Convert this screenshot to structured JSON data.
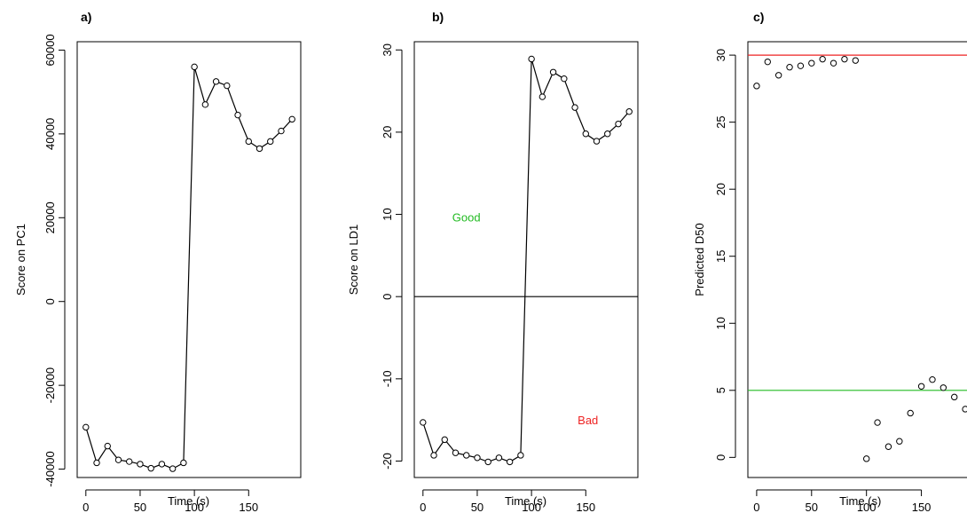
{
  "chart_data": [
    {
      "type": "line",
      "panel_label": "a)",
      "xlabel": "Time (s)",
      "ylabel": "Score on PC1",
      "xlim": [
        -8,
        198
      ],
      "ylim": [
        -42000,
        62000
      ],
      "x_ticks": [
        0,
        50,
        100,
        150
      ],
      "y_ticks": [
        -40000,
        -20000,
        0,
        20000,
        40000,
        60000
      ],
      "x_tick_labels": [
        "0",
        "50",
        "100",
        "150"
      ],
      "y_tick_labels": [
        "-40000",
        "-20000",
        "0",
        "20000",
        "40000",
        "60000"
      ],
      "markers": true,
      "series": [
        {
          "color": "#000000",
          "x": [
            0,
            10,
            20,
            30,
            40,
            50,
            60,
            70,
            80,
            90,
            100,
            110,
            120,
            130,
            140,
            150,
            160,
            170,
            180,
            190
          ],
          "y": [
            -30000,
            -38500,
            -34500,
            -37800,
            -38200,
            -38800,
            -39800,
            -38800,
            -39900,
            -38500,
            56000,
            47000,
            52500,
            51500,
            44500,
            38200,
            36500,
            38200,
            40700,
            43500
          ]
        }
      ]
    },
    {
      "type": "line",
      "panel_label": "b)",
      "xlabel": "Time (s)",
      "ylabel": "Score on LD1",
      "xlim": [
        -8,
        198
      ],
      "ylim": [
        -22,
        31
      ],
      "x_ticks": [
        0,
        50,
        100,
        150
      ],
      "y_ticks": [
        -20,
        -10,
        0,
        10,
        20,
        30
      ],
      "x_tick_labels": [
        "0",
        "50",
        "100",
        "150"
      ],
      "y_tick_labels": [
        "-20",
        "-10",
        "0",
        "10",
        "20",
        "30"
      ],
      "markers": true,
      "hlines": [
        {
          "y": 0,
          "color": "#000000"
        }
      ],
      "annotations": [
        {
          "text": "Good",
          "x": 40,
          "y": 9.7,
          "color": "#22bb22"
        },
        {
          "text": "Bad",
          "x": 152,
          "y": -15,
          "color": "#ee2222"
        }
      ],
      "series": [
        {
          "color": "#000000",
          "x": [
            0,
            10,
            20,
            30,
            40,
            50,
            60,
            70,
            80,
            90,
            100,
            110,
            120,
            130,
            140,
            150,
            160,
            170,
            180,
            190
          ],
          "y": [
            -15.3,
            -19.3,
            -17.4,
            -19.0,
            -19.3,
            -19.6,
            -20.1,
            -19.6,
            -20.1,
            -19.3,
            28.9,
            24.3,
            27.3,
            26.5,
            23.0,
            19.8,
            18.9,
            19.8,
            21.0,
            22.5
          ]
        }
      ]
    },
    {
      "type": "scatter",
      "panel_label": "c)",
      "xlabel": "Time (s)",
      "ylabel": "Predicted D50",
      "xlim": [
        -8,
        198
      ],
      "ylim": [
        -1.5,
        31
      ],
      "x_ticks": [
        0,
        50,
        100,
        150
      ],
      "y_ticks": [
        0,
        5,
        10,
        15,
        20,
        25,
        30
      ],
      "x_tick_labels": [
        "0",
        "50",
        "100",
        "150"
      ],
      "y_tick_labels": [
        "0",
        "5",
        "10",
        "15",
        "20",
        "25",
        "30"
      ],
      "markers": true,
      "hlines": [
        {
          "y": 30,
          "color": "#ee2222"
        },
        {
          "y": 5,
          "color": "#22bb22"
        }
      ],
      "series": [
        {
          "color": "#000000",
          "x": [
            0,
            10,
            20,
            30,
            40,
            50,
            60,
            70,
            80,
            90,
            100,
            110,
            120,
            130,
            140,
            150,
            160,
            170,
            180,
            190
          ],
          "y": [
            27.7,
            29.5,
            28.5,
            29.1,
            29.2,
            29.4,
            29.7,
            29.4,
            29.7,
            29.6,
            -0.1,
            2.6,
            0.8,
            1.2,
            3.3,
            5.3,
            5.8,
            5.2,
            4.5,
            3.6
          ]
        }
      ]
    }
  ]
}
